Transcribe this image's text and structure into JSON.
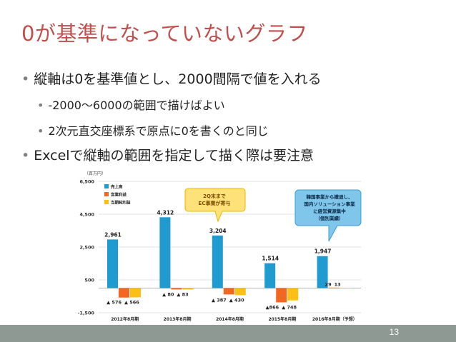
{
  "slide": {
    "title": "0が基準になっていないグラフ",
    "bullets": [
      "縦軸は0を基準値とし、2000間隔で値を入れる",
      "-2000～6000の範囲で描けばよい",
      "2次元直交座標系で原点に0を書くのと同じ",
      "Excelで縦軸の範囲を指定して描く際は要注意"
    ],
    "bullet_glyph": "•",
    "page_number": "13"
  },
  "chart_data": {
    "type": "bar",
    "unit_label": "（百万円）",
    "categories": [
      "2012年8月期",
      "2013年8月期",
      "2014年8月期",
      "2015年8月期",
      "2016年8月期（予想）"
    ],
    "series": [
      {
        "name": "売上高",
        "color": "#1f9bcf",
        "values": [
          2961,
          4312,
          3204,
          1514,
          1947
        ],
        "labels": [
          "2,961",
          "4,312",
          "3,204",
          "1,514",
          "1,947"
        ]
      },
      {
        "name": "営業利益",
        "color": "#f26722",
        "values": [
          -576,
          -80,
          -387,
          -866,
          29
        ],
        "labels": [
          "▲ 576",
          "▲ 80",
          "▲ 387",
          "▲866",
          "29"
        ]
      },
      {
        "name": "当期純利益",
        "color": "#fbbf16",
        "values": [
          -566,
          -83,
          -430,
          -748,
          13
        ],
        "labels": [
          "▲ 566",
          "▲ 83",
          "▲ 430",
          "▲ 748",
          "13"
        ]
      }
    ],
    "yticks": [
      6500,
      4500,
      2500,
      500,
      -1500
    ],
    "ytick_labels": [
      "6,500",
      "4,500",
      "2,500",
      "500",
      "-1,500"
    ],
    "ylim": [
      -1500,
      6500
    ],
    "grid": true,
    "legend": "top-left",
    "callouts": [
      {
        "text": [
          "2Q末まで",
          "EC事業が寄与"
        ],
        "fill": "#ffe17a",
        "stroke": "#e6b800",
        "text_color": "#7a4d00"
      },
      {
        "text": [
          "韓国事業から撤退し、",
          "国内ソリューション事業",
          "に経営資源集中",
          "（個別業績）"
        ],
        "fill": "#7fc6ea",
        "stroke": "#3a9fd5",
        "text_color": "#0b2a4a"
      }
    ]
  }
}
